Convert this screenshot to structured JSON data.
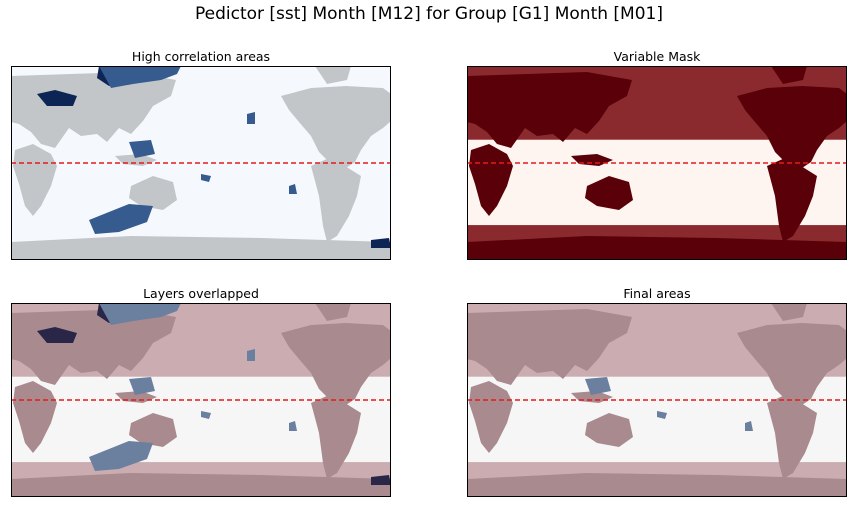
{
  "figure": {
    "suptitle": "Pedictor [sst] Month [M12] for Group [G1] Month [M01]"
  },
  "colors": {
    "frame": "#000000",
    "equator": "#e41a1c",
    "ocean_blank": "#f5f9fe",
    "land_gray": "#c3c6c8",
    "corr_medium": "#365b8f",
    "corr_strong": "#0d2554",
    "mask_high_lat": "#8b2a2e",
    "mask_land": "#5a0008",
    "mask_tropics": "#fff5f0",
    "overlap_high_lat": "#cbadb1",
    "overlap_land": "#a88a8f",
    "overlap_tropics": "#f7f6f7",
    "overlap_corr_medium": "#6b7f9f",
    "overlap_corr_strong": "#2a2648"
  },
  "chart_data": [
    {
      "type": "heatmap",
      "title": "High correlation areas",
      "layers": [
        "land",
        "correlation"
      ],
      "equator_line": "dashed",
      "axes_ticks": "none"
    },
    {
      "type": "heatmap",
      "title": "Variable Mask",
      "layers": [
        "mask_bands",
        "land"
      ],
      "equator_line": "dashed",
      "axes_ticks": "none"
    },
    {
      "type": "heatmap",
      "title": "Layers overlapped",
      "layers": [
        "mask_bands",
        "land",
        "correlation"
      ],
      "equator_line": "dashed",
      "axes_ticks": "none"
    },
    {
      "type": "heatmap",
      "title": "Final areas",
      "layers": [
        "mask_bands",
        "land",
        "correlation_within_tropics"
      ],
      "equator_line": "dashed",
      "axes_ticks": "none"
    }
  ]
}
